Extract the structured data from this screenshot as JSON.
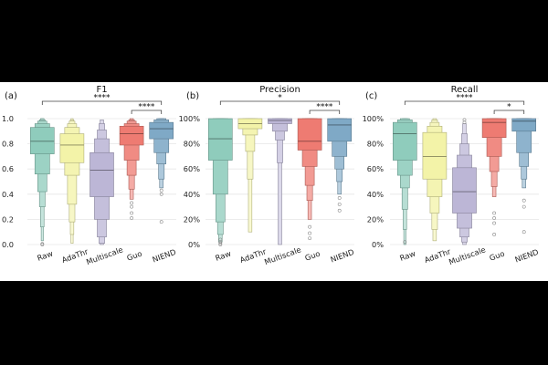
{
  "figure": {
    "background": "#000000",
    "panel_background": "#ffffff",
    "grid_color": "#e6e6e6",
    "bracket_color": "#444444"
  },
  "categories": [
    "Raw",
    "AdaThr",
    "Multiscale",
    "Guo",
    "NIEND"
  ],
  "colors": {
    "Raw": "#8fccbc",
    "AdaThr": "#f3f3a8",
    "Multiscale": "#bcb6d6",
    "Guo": "#ee7b72",
    "NIEND": "#7fa9c6"
  },
  "chart_data": [
    {
      "type": "boxen",
      "panel_label": "(a)",
      "title": "F1",
      "categories": [
        "Raw",
        "AdaThr",
        "Multiscale",
        "Guo",
        "NIEND"
      ],
      "yticks": [
        "0.0",
        "0.2",
        "0.4",
        "0.6",
        "0.8",
        "1.0"
      ],
      "ylim": [
        0,
        1
      ],
      "series": [
        {
          "name": "Raw",
          "median": 0.82,
          "levels": [
            [
              0.72,
              0.93
            ],
            [
              0.56,
              0.96
            ],
            [
              0.42,
              0.98
            ],
            [
              0.3,
              0.99
            ],
            [
              0.14,
              1.0
            ],
            [
              0.03,
              1.0
            ]
          ],
          "outliers": [
            0.0,
            0.005
          ]
        },
        {
          "name": "AdaThr",
          "median": 0.79,
          "levels": [
            [
              0.65,
              0.88
            ],
            [
              0.55,
              0.93
            ],
            [
              0.32,
              0.96
            ],
            [
              0.18,
              0.98
            ],
            [
              0.08,
              0.99
            ],
            [
              0.01,
              1.0
            ]
          ],
          "outliers": []
        },
        {
          "name": "Multiscale",
          "median": 0.59,
          "levels": [
            [
              0.38,
              0.73
            ],
            [
              0.2,
              0.84
            ],
            [
              0.06,
              0.91
            ],
            [
              0.01,
              0.96
            ],
            [
              0.0,
              0.99
            ]
          ],
          "outliers": []
        },
        {
          "name": "Guo",
          "median": 0.88,
          "levels": [
            [
              0.79,
              0.94
            ],
            [
              0.67,
              0.96
            ],
            [
              0.55,
              0.98
            ],
            [
              0.44,
              0.99
            ],
            [
              0.36,
              1.0
            ]
          ],
          "outliers": [
            0.33,
            0.3,
            0.25,
            0.21
          ]
        },
        {
          "name": "NIEND",
          "median": 0.92,
          "levels": [
            [
              0.84,
              0.97
            ],
            [
              0.73,
              0.99
            ],
            [
              0.64,
              1.0
            ],
            [
              0.52,
              1.0
            ],
            [
              0.45,
              1.0
            ]
          ],
          "outliers": [
            0.43,
            0.4,
            0.18
          ]
        }
      ],
      "significance": [
        {
          "from": "Raw",
          "to": "NIEND",
          "level": 1.12,
          "label": "****"
        },
        {
          "from": "Guo",
          "to": "NIEND",
          "level": 1.05,
          "label": "****"
        }
      ]
    },
    {
      "type": "boxen",
      "panel_label": "(b)",
      "title": "Precision",
      "categories": [
        "Raw",
        "AdaThr",
        "Multiscale",
        "Guo",
        "NIEND"
      ],
      "yticks": [
        "0%",
        "20%",
        "40%",
        "60%",
        "80%",
        "100%"
      ],
      "ylim": [
        0,
        100
      ],
      "series": [
        {
          "name": "Raw",
          "median": 84,
          "levels": [
            [
              67,
              100
            ],
            [
              40,
              100
            ],
            [
              18,
              100
            ],
            [
              8,
              100
            ],
            [
              2,
              100
            ]
          ],
          "outliers": [
            4,
            2,
            1,
            0
          ]
        },
        {
          "name": "AdaThr",
          "median": 96,
          "levels": [
            [
              92,
              100
            ],
            [
              87,
              100
            ],
            [
              74,
              100
            ],
            [
              52,
              100
            ],
            [
              10,
              100
            ]
          ],
          "outliers": []
        },
        {
          "name": "Multiscale",
          "median": 98.5,
          "levels": [
            [
              96,
              100
            ],
            [
              90,
              100
            ],
            [
              83,
              100
            ],
            [
              65,
              100
            ],
            [
              0,
              100
            ]
          ],
          "outliers": []
        },
        {
          "name": "Guo",
          "median": 82,
          "levels": [
            [
              75,
              100
            ],
            [
              62,
              100
            ],
            [
              47,
              100
            ],
            [
              35,
              100
            ],
            [
              20,
              100
            ]
          ],
          "outliers": [
            14,
            9,
            5
          ]
        },
        {
          "name": "NIEND",
          "median": 95,
          "levels": [
            [
              82,
              100
            ],
            [
              70,
              100
            ],
            [
              60,
              100
            ],
            [
              50,
              100
            ],
            [
              40,
              100
            ]
          ],
          "outliers": [
            37,
            32,
            27
          ]
        }
      ],
      "significance": [
        {
          "from": "Raw",
          "to": "NIEND",
          "level": 112,
          "label": "*"
        },
        {
          "from": "Guo",
          "to": "NIEND",
          "level": 105,
          "label": "****"
        }
      ]
    },
    {
      "type": "boxen",
      "panel_label": "(c)",
      "title": "Recall",
      "categories": [
        "Raw",
        "AdaThr",
        "Multiscale",
        "Guo",
        "NIEND"
      ],
      "yticks": [
        "0%",
        "20%",
        "40%",
        "60%",
        "80%",
        "100%"
      ],
      "ylim": [
        0,
        100
      ],
      "series": [
        {
          "name": "Raw",
          "median": 88,
          "levels": [
            [
              67,
              97
            ],
            [
              55,
              99
            ],
            [
              45,
              100
            ],
            [
              28,
              100
            ],
            [
              12,
              100
            ],
            [
              0,
              100
            ]
          ],
          "outliers": [
            2
          ]
        },
        {
          "name": "AdaThr",
          "median": 70,
          "levels": [
            [
              52,
              89
            ],
            [
              38,
              94
            ],
            [
              25,
              97
            ],
            [
              12,
              99
            ],
            [
              3,
              100
            ]
          ],
          "outliers": []
        },
        {
          "name": "Multiscale",
          "median": 42,
          "levels": [
            [
              25,
              61
            ],
            [
              13,
              71
            ],
            [
              6,
              80
            ],
            [
              2,
              88
            ],
            [
              0,
              96
            ]
          ],
          "outliers": [
            97,
            99
          ]
        },
        {
          "name": "Guo",
          "median": 97,
          "levels": [
            [
              85,
              100
            ],
            [
              70,
              100
            ],
            [
              58,
              100
            ],
            [
              46,
              100
            ],
            [
              38,
              100
            ]
          ],
          "outliers": [
            25,
            21,
            17,
            8
          ]
        },
        {
          "name": "NIEND",
          "median": 98,
          "levels": [
            [
              90,
              100
            ],
            [
              73,
              100
            ],
            [
              62,
              100
            ],
            [
              52,
              100
            ],
            [
              45,
              100
            ]
          ],
          "outliers": [
            35,
            30,
            10
          ]
        }
      ],
      "significance": [
        {
          "from": "Raw",
          "to": "NIEND",
          "level": 112,
          "label": "****"
        },
        {
          "from": "Guo",
          "to": "NIEND",
          "level": 105,
          "label": "*"
        }
      ]
    }
  ]
}
